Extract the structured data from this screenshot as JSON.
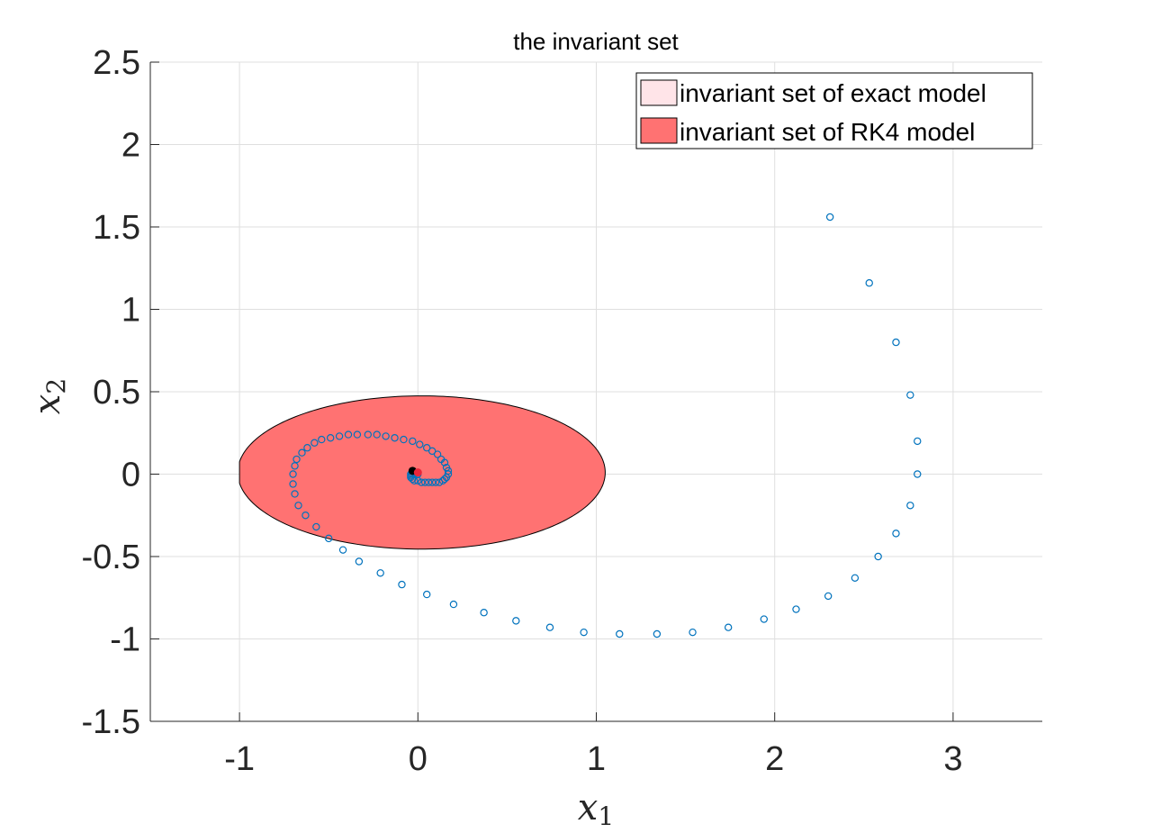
{
  "chart_data": {
    "type": "scatter",
    "title": "the invariant set",
    "xlabel": "x",
    "xlabel_sub": "1",
    "ylabel": "x",
    "ylabel_sub": "2",
    "xlim": [
      -1.5,
      3.5
    ],
    "ylim": [
      -1.5,
      2.5
    ],
    "xticks": [
      -1,
      0,
      1,
      2,
      3
    ],
    "xtick_labels": [
      "-1",
      "0",
      "1",
      "2",
      "3"
    ],
    "yticks": [
      -1.5,
      -1,
      -0.5,
      0,
      0.5,
      1,
      1.5,
      2,
      2.5
    ],
    "ytick_labels": [
      "-1.5",
      "-1",
      "-0.5",
      "0",
      "0.5",
      "1",
      "1.5",
      "2",
      "2.5"
    ],
    "grid": true,
    "legend_position": "top-right",
    "legend": [
      {
        "label": "invariant set of exact model",
        "color": "#FFE4E8"
      },
      {
        "label": "invariant set of RK4 model",
        "color": "#FF7272"
      }
    ],
    "rk4_set": {
      "center": [
        0.02,
        0.01
      ],
      "semi_axes": [
        1.03,
        0.465
      ],
      "clip_xmin": -1.0,
      "color": "#FF7272",
      "edge_color": "#000000"
    },
    "trajectory": {
      "color": "#0072BD",
      "x": [
        2.31,
        2.53,
        2.68,
        2.76,
        2.8,
        2.8,
        2.76,
        2.68,
        2.58,
        2.45,
        2.3,
        2.12,
        1.94,
        1.74,
        1.54,
        1.34,
        1.13,
        0.93,
        0.74,
        0.55,
        0.37,
        0.2,
        0.05,
        -0.09,
        -0.21,
        -0.33,
        -0.42,
        -0.5,
        -0.57,
        -0.63,
        -0.67,
        -0.69,
        -0.7,
        -0.7,
        -0.69,
        -0.68,
        -0.65,
        -0.62,
        -0.58,
        -0.54,
        -0.49,
        -0.44,
        -0.39,
        -0.34,
        -0.28,
        -0.23,
        -0.18,
        -0.13,
        -0.08,
        -0.03,
        0.01,
        0.05,
        0.08,
        0.11,
        0.13,
        0.15,
        0.16,
        0.17,
        0.17,
        0.16,
        0.15,
        0.14,
        0.12,
        0.1,
        0.08,
        0.06,
        0.04,
        0.02,
        0.0,
        -0.02,
        -0.03,
        -0.04,
        -0.04,
        -0.04,
        -0.03,
        -0.02,
        -0.01,
        0.0
      ],
      "y": [
        1.56,
        1.16,
        0.8,
        0.48,
        0.2,
        0.0,
        -0.19,
        -0.36,
        -0.5,
        -0.63,
        -0.74,
        -0.82,
        -0.88,
        -0.93,
        -0.96,
        -0.97,
        -0.97,
        -0.96,
        -0.93,
        -0.89,
        -0.84,
        -0.79,
        -0.73,
        -0.67,
        -0.6,
        -0.53,
        -0.46,
        -0.39,
        -0.32,
        -0.25,
        -0.19,
        -0.12,
        -0.06,
        0.0,
        0.05,
        0.09,
        0.13,
        0.16,
        0.19,
        0.21,
        0.22,
        0.23,
        0.24,
        0.24,
        0.24,
        0.24,
        0.23,
        0.22,
        0.21,
        0.2,
        0.18,
        0.16,
        0.14,
        0.12,
        0.09,
        0.07,
        0.04,
        0.02,
        0.0,
        -0.02,
        -0.03,
        -0.04,
        -0.05,
        -0.05,
        -0.05,
        -0.05,
        -0.05,
        -0.05,
        -0.04,
        -0.04,
        -0.03,
        -0.02,
        -0.01,
        0.0,
        0.0,
        0.0,
        0.01,
        0.0
      ]
    },
    "equilibrium_points": [
      {
        "x": -0.03,
        "y": 0.02,
        "color": "#000000"
      },
      {
        "x": 0.0,
        "y": 0.01,
        "color": "#E8263A"
      }
    ]
  }
}
